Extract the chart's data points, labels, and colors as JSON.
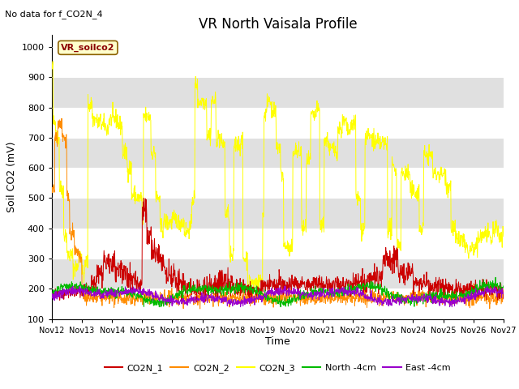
{
  "title": "VR North Vaisala Profile",
  "subtitle": "No data for f_CO2N_4",
  "ylabel": "Soil CO2 (mV)",
  "xlabel": "Time",
  "ylim": [
    100,
    1040
  ],
  "yticks": [
    100,
    200,
    300,
    400,
    500,
    600,
    700,
    800,
    900,
    1000
  ],
  "x_start": 12,
  "x_end": 27,
  "x_ticks": [
    12,
    13,
    14,
    15,
    16,
    17,
    18,
    19,
    20,
    21,
    22,
    23,
    24,
    25,
    26,
    27
  ],
  "x_tick_labels": [
    "Nov 12",
    "Nov 13",
    "Nov 14",
    "Nov 15",
    "Nov 16",
    "Nov 17",
    "Nov 18",
    "Nov 19",
    "Nov 20",
    "Nov 21",
    "Nov 22",
    "Nov 23",
    "Nov 24",
    "Nov 25",
    "Nov 26",
    "Nov 27"
  ],
  "line_colors": {
    "CO2N_1": "#cc0000",
    "CO2N_2": "#ff8c00",
    "CO2N_3": "#ffff00",
    "North_4cm": "#00bb00",
    "East_4cm": "#9900cc"
  },
  "legend_labels": [
    "CO2N_1",
    "CO2N_2",
    "CO2N_3",
    "North -4cm",
    "East -4cm"
  ],
  "watermark": "VR_soilco2",
  "band_colors": [
    "#ffffff",
    "#e0e0e0"
  ],
  "title_fontsize": 12,
  "label_fontsize": 9,
  "subtitle_fontsize": 8
}
